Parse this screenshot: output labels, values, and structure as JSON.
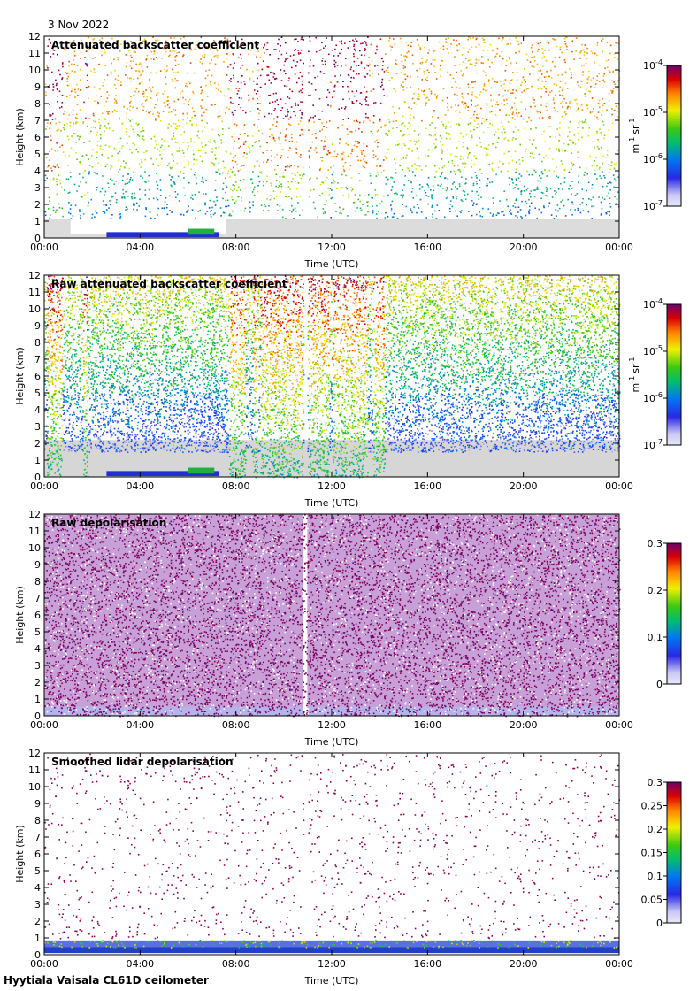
{
  "date": "3 Nov 2022",
  "footer": "Hyytiala Vaisala CL61D ceilometer",
  "chart_data": [
    {
      "type": "heatmap",
      "title": "Attenuated backscatter coefficient",
      "xlabel": "Time (UTC)",
      "ylabel": "Height (km)",
      "xticks": [
        "00:00",
        "04:00",
        "08:00",
        "12:00",
        "16:00",
        "20:00",
        "00:00"
      ],
      "yticks": [
        "0",
        "1",
        "2",
        "3",
        "4",
        "5",
        "6",
        "7",
        "8",
        "9",
        "10",
        "11",
        "12"
      ],
      "ylim": [
        0,
        12
      ],
      "xlim_hours": [
        0,
        24
      ],
      "colorbar": {
        "scale": "log",
        "ticks": [
          {
            "value": -4,
            "base": "10",
            "exp": "-4"
          },
          {
            "value": -5,
            "base": "10",
            "exp": "-5"
          },
          {
            "value": -6,
            "base": "10",
            "exp": "-6"
          },
          {
            "value": -7,
            "base": "10",
            "exp": "-7"
          }
        ],
        "range": [
          -7,
          -4
        ],
        "unit": {
          "m": "m",
          "m_exp": "-1",
          "sr": "sr",
          "sr_exp": "-1"
        }
      }
    },
    {
      "type": "heatmap",
      "title": "Raw attenuated backscatter coefficient",
      "xlabel": "Time (UTC)",
      "ylabel": "Height (km)",
      "xticks": [
        "00:00",
        "04:00",
        "08:00",
        "12:00",
        "16:00",
        "20:00",
        "00:00"
      ],
      "yticks": [
        "0",
        "1",
        "2",
        "3",
        "4",
        "5",
        "6",
        "7",
        "8",
        "9",
        "10",
        "11",
        "12"
      ],
      "ylim": [
        0,
        12
      ],
      "xlim_hours": [
        0,
        24
      ],
      "colorbar": {
        "scale": "log",
        "ticks": [
          {
            "value": -4,
            "base": "10",
            "exp": "-4"
          },
          {
            "value": -5,
            "base": "10",
            "exp": "-5"
          },
          {
            "value": -6,
            "base": "10",
            "exp": "-6"
          },
          {
            "value": -7,
            "base": "10",
            "exp": "-7"
          }
        ],
        "range": [
          -7,
          -4
        ],
        "unit": {
          "m": "m",
          "m_exp": "-1",
          "sr": "sr",
          "sr_exp": "-1"
        }
      }
    },
    {
      "type": "heatmap",
      "title": "Raw depolarisation",
      "xlabel": "Time (UTC)",
      "ylabel": "Height (km)",
      "xticks": [
        "00:00",
        "04:00",
        "08:00",
        "12:00",
        "16:00",
        "20:00",
        "00:00"
      ],
      "yticks": [
        "0",
        "1",
        "2",
        "3",
        "4",
        "5",
        "6",
        "7",
        "8",
        "9",
        "10",
        "11",
        "12"
      ],
      "ylim": [
        0,
        12
      ],
      "xlim_hours": [
        0,
        24
      ],
      "colorbar": {
        "scale": "linear",
        "ticks": [
          {
            "value": 0.3,
            "label": "0.3"
          },
          {
            "value": 0.2,
            "label": "0.2"
          },
          {
            "value": 0.1,
            "label": "0.1"
          },
          {
            "value": 0,
            "label": "0"
          }
        ],
        "range": [
          0,
          0.3
        ]
      }
    },
    {
      "type": "heatmap",
      "title": "Smoothed lidar depolarisation",
      "xlabel": "Time (UTC)",
      "ylabel": "Height (km)",
      "xticks": [
        "00:00",
        "04:00",
        "08:00",
        "12:00",
        "16:00",
        "20:00",
        "00:00"
      ],
      "yticks": [
        "0",
        "1",
        "2",
        "3",
        "4",
        "5",
        "6",
        "7",
        "8",
        "9",
        "10",
        "11",
        "12"
      ],
      "ylim": [
        0,
        12
      ],
      "xlim_hours": [
        0,
        24
      ],
      "colorbar": {
        "scale": "linear",
        "ticks": [
          {
            "value": 0.3,
            "label": "0.3"
          },
          {
            "value": 0.25,
            "label": "0.25"
          },
          {
            "value": 0.2,
            "label": "0.2"
          },
          {
            "value": 0.15,
            "label": "0.15"
          },
          {
            "value": 0.1,
            "label": "0.1"
          },
          {
            "value": 0.05,
            "label": "0.05"
          },
          {
            "value": 0,
            "label": "0"
          }
        ],
        "range": [
          0,
          0.3
        ]
      }
    }
  ]
}
